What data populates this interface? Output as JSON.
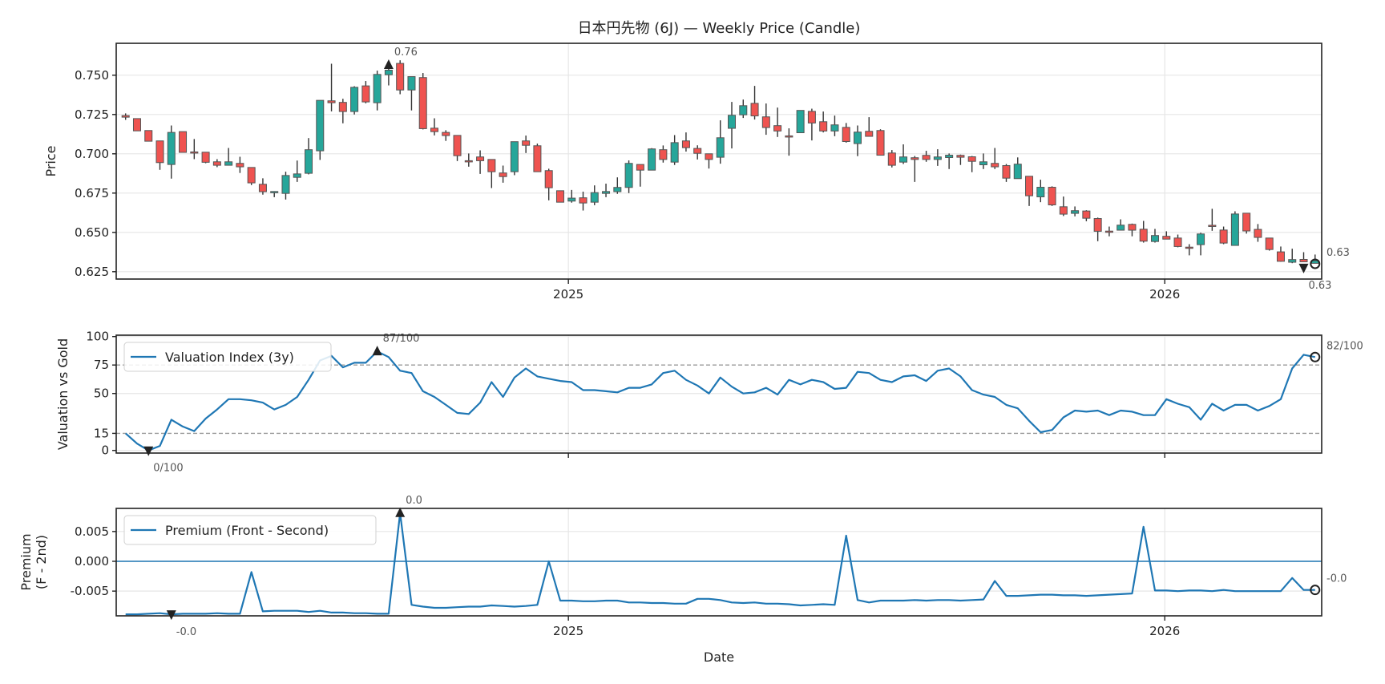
{
  "chart_data": [
    {
      "type": "candlestick",
      "title": "日本円先物 (6J) — Weekly Price (Candle)",
      "ylabel": "Price",
      "x_start": "2024-04-05",
      "x_step_days": 7,
      "ylim": [
        0.6203,
        0.7703
      ],
      "yticks": [
        0.75,
        0.725,
        0.7,
        0.675,
        0.65,
        0.625
      ],
      "ytick_labels": [
        "0.750",
        "0.725",
        "0.700",
        "0.675",
        "0.650",
        "0.625"
      ],
      "xticks": [
        "2025-01-01",
        "2026-01-01"
      ],
      "xtick_labels": [
        "2025",
        "2026"
      ],
      "colors": {
        "up": "#26a69a",
        "down": "#ef5350",
        "edge": "#555555",
        "wick": "#333333"
      },
      "ohlc": [
        [
          0.7243,
          0.7257,
          0.7216,
          0.7233
        ],
        [
          0.7224,
          0.7224,
          0.7146,
          0.7146
        ],
        [
          0.7148,
          0.7148,
          0.708,
          0.708
        ],
        [
          0.7082,
          0.7082,
          0.6898,
          0.6944
        ],
        [
          0.6932,
          0.718,
          0.6842,
          0.7136
        ],
        [
          0.7141,
          0.7141,
          0.7009,
          0.7009
        ],
        [
          0.7012,
          0.7094,
          0.6966,
          0.7008
        ],
        [
          0.701,
          0.701,
          0.694,
          0.6946
        ],
        [
          0.6949,
          0.6966,
          0.6915,
          0.6927
        ],
        [
          0.6927,
          0.7037,
          0.6927,
          0.6949
        ],
        [
          0.6939,
          0.6981,
          0.6878,
          0.6917
        ],
        [
          0.6913,
          0.6913,
          0.6801,
          0.6815
        ],
        [
          0.6806,
          0.6844,
          0.674,
          0.6759
        ],
        [
          0.6755,
          0.6762,
          0.6724,
          0.676
        ],
        [
          0.6748,
          0.6886,
          0.6709,
          0.6862
        ],
        [
          0.685,
          0.6957,
          0.6821,
          0.6872
        ],
        [
          0.6876,
          0.71,
          0.6869,
          0.7026
        ],
        [
          0.7019,
          0.734,
          0.6961,
          0.734
        ],
        [
          0.7337,
          0.7573,
          0.727,
          0.7325
        ],
        [
          0.7327,
          0.735,
          0.7194,
          0.7269
        ],
        [
          0.7269,
          0.743,
          0.725,
          0.7423
        ],
        [
          0.7432,
          0.7463,
          0.7321,
          0.733
        ],
        [
          0.7325,
          0.7529,
          0.7276,
          0.7505
        ],
        [
          0.7503,
          0.755,
          0.7435,
          0.7532
        ],
        [
          0.7575,
          0.7595,
          0.7379,
          0.7406
        ],
        [
          0.7406,
          0.7491,
          0.7276,
          0.7491
        ],
        [
          0.7485,
          0.7514,
          0.7155,
          0.716
        ],
        [
          0.7163,
          0.7226,
          0.7117,
          0.7141
        ],
        [
          0.7136,
          0.715,
          0.7082,
          0.7116
        ],
        [
          0.7117,
          0.7117,
          0.6954,
          0.6988
        ],
        [
          0.6956,
          0.7002,
          0.6918,
          0.6954
        ],
        [
          0.698,
          0.7022,
          0.6872,
          0.6956
        ],
        [
          0.6964,
          0.6964,
          0.6782,
          0.6886
        ],
        [
          0.6878,
          0.6925,
          0.6816,
          0.6855
        ],
        [
          0.6886,
          0.7077,
          0.6864,
          0.7077
        ],
        [
          0.7082,
          0.7116,
          0.7005,
          0.7054
        ],
        [
          0.7051,
          0.7065,
          0.6886,
          0.6886
        ],
        [
          0.6893,
          0.6905,
          0.6704,
          0.6784
        ],
        [
          0.6765,
          0.6765,
          0.6692,
          0.6692
        ],
        [
          0.6699,
          0.677,
          0.6689,
          0.6718
        ],
        [
          0.672,
          0.6759,
          0.6639,
          0.6687
        ],
        [
          0.6692,
          0.6799,
          0.6673,
          0.6753
        ],
        [
          0.6748,
          0.681,
          0.6724,
          0.676
        ],
        [
          0.6759,
          0.685,
          0.6745,
          0.6786
        ],
        [
          0.6786,
          0.6958,
          0.675,
          0.6939
        ],
        [
          0.6932,
          0.6932,
          0.6791,
          0.6896
        ],
        [
          0.6896,
          0.7036,
          0.6896,
          0.7031
        ],
        [
          0.7026,
          0.7053,
          0.6944,
          0.6964
        ],
        [
          0.6947,
          0.7119,
          0.6929,
          0.7071
        ],
        [
          0.7082,
          0.7136,
          0.7014,
          0.7039
        ],
        [
          0.7034,
          0.7054,
          0.6964,
          0.7003
        ],
        [
          0.7,
          0.7,
          0.6906,
          0.6964
        ],
        [
          0.6978,
          0.7213,
          0.6937,
          0.7102
        ],
        [
          0.7162,
          0.733,
          0.7034,
          0.7245
        ],
        [
          0.7248,
          0.7345,
          0.7228,
          0.7306
        ],
        [
          0.7321,
          0.7432,
          0.7218,
          0.7241
        ],
        [
          0.7235,
          0.732,
          0.7121,
          0.7167
        ],
        [
          0.7179,
          0.7294,
          0.7107,
          0.7145
        ],
        [
          0.7114,
          0.7162,
          0.6988,
          0.7112
        ],
        [
          0.7134,
          0.7276,
          0.7134,
          0.7276
        ],
        [
          0.727,
          0.7287,
          0.7085,
          0.7196
        ],
        [
          0.7204,
          0.7269,
          0.7136,
          0.7145
        ],
        [
          0.7145,
          0.7243,
          0.7112,
          0.7184
        ],
        [
          0.7168,
          0.7196,
          0.7071,
          0.7078
        ],
        [
          0.7065,
          0.718,
          0.6985,
          0.7138
        ],
        [
          0.7143,
          0.7233,
          0.7111,
          0.7111
        ],
        [
          0.7148,
          0.7156,
          0.6991,
          0.6991
        ],
        [
          0.7005,
          0.7024,
          0.6913,
          0.6927
        ],
        [
          0.6947,
          0.706,
          0.6935,
          0.698
        ],
        [
          0.6975,
          0.6986,
          0.6821,
          0.6964
        ],
        [
          0.699,
          0.7019,
          0.6949,
          0.6964
        ],
        [
          0.6964,
          0.7029,
          0.6923,
          0.698
        ],
        [
          0.6976,
          0.7002,
          0.6903,
          0.6991
        ],
        [
          0.699,
          0.6995,
          0.6929,
          0.6978
        ],
        [
          0.6981,
          0.6986,
          0.6883,
          0.6952
        ],
        [
          0.693,
          0.7002,
          0.6903,
          0.6949
        ],
        [
          0.6939,
          0.7037,
          0.6903,
          0.6917
        ],
        [
          0.6925,
          0.6935,
          0.6821,
          0.6845
        ],
        [
          0.6842,
          0.6977,
          0.6842,
          0.6934
        ],
        [
          0.6857,
          0.6857,
          0.6668,
          0.6733
        ],
        [
          0.6726,
          0.6835,
          0.6692,
          0.6787
        ],
        [
          0.6787,
          0.6793,
          0.6668,
          0.6675
        ],
        [
          0.6663,
          0.6728,
          0.6604,
          0.6616
        ],
        [
          0.6621,
          0.6665,
          0.6602,
          0.6638
        ],
        [
          0.6636,
          0.6641,
          0.6571,
          0.659
        ],
        [
          0.6588,
          0.6594,
          0.6444,
          0.6507
        ],
        [
          0.6508,
          0.6537,
          0.6475,
          0.6507
        ],
        [
          0.6514,
          0.6583,
          0.6514,
          0.6546
        ],
        [
          0.6551,
          0.6556,
          0.6475,
          0.6514
        ],
        [
          0.652,
          0.6573,
          0.6435,
          0.6444
        ],
        [
          0.6442,
          0.6522,
          0.6435,
          0.648
        ],
        [
          0.6475,
          0.6507,
          0.6457,
          0.6457
        ],
        [
          0.6464,
          0.6486,
          0.6405,
          0.641
        ],
        [
          0.6406,
          0.6425,
          0.6354,
          0.6405
        ],
        [
          0.6422,
          0.6498,
          0.6354,
          0.649
        ],
        [
          0.6545,
          0.665,
          0.651,
          0.6544
        ],
        [
          0.6515,
          0.6537,
          0.6425,
          0.6432
        ],
        [
          0.6417,
          0.6634,
          0.6417,
          0.6617
        ],
        [
          0.6622,
          0.6622,
          0.6492,
          0.6509
        ],
        [
          0.6519,
          0.6553,
          0.644,
          0.6468
        ],
        [
          0.6464,
          0.6464,
          0.6384,
          0.6391
        ],
        [
          0.6376,
          0.641,
          0.6313,
          0.6316
        ],
        [
          0.631,
          0.6396,
          0.6304,
          0.6327
        ],
        [
          0.6328,
          0.6374,
          0.6313,
          0.6313
        ],
        [
          0.6303,
          0.6359,
          0.6303,
          0.632
        ]
      ],
      "annotations": [
        {
          "index": 23,
          "value": 0.7565,
          "label": "0.76",
          "marker": "triangle-up",
          "pos": "above"
        },
        {
          "index": 103,
          "value": 0.6275,
          "label": "0.63",
          "marker": "triangle-down",
          "pos": "below"
        },
        {
          "index": 104,
          "value": 0.63,
          "label": "0.63",
          "marker": "circle",
          "pos": "right"
        }
      ]
    },
    {
      "type": "line",
      "ylabel": "Valuation vs Gold",
      "legend": "Valuation Index (3y)",
      "legend_position": "upper-left",
      "color": "#1f77b4",
      "ylim": [
        -2.3,
        101.2
      ],
      "yticks": [
        0,
        15,
        50,
        75,
        100
      ],
      "ytick_labels": [
        "0",
        "15",
        "50",
        "75",
        "100"
      ],
      "grid_y": [
        0,
        50,
        100
      ],
      "threshold_lines": [
        75,
        15
      ],
      "values": [
        15,
        6,
        0,
        4,
        27,
        21,
        17,
        28,
        36,
        45,
        45,
        44,
        42,
        36,
        40,
        47,
        62,
        79,
        83,
        73,
        77,
        77,
        87,
        82,
        70,
        68,
        52,
        47,
        40,
        33,
        32,
        42,
        60,
        47,
        64,
        72,
        65,
        63,
        61,
        60,
        53,
        53,
        52,
        51,
        55,
        55,
        58,
        68,
        70,
        62,
        57,
        50,
        64,
        56,
        50,
        51,
        55,
        49,
        62,
        58,
        62,
        60,
        54,
        55,
        69,
        68,
        62,
        60,
        65,
        66,
        61,
        70,
        72,
        65,
        53,
        49,
        47,
        40,
        37,
        26,
        16,
        18,
        29,
        35,
        34,
        35,
        31,
        35,
        34,
        31,
        31,
        45,
        41,
        38,
        27,
        41,
        35,
        40,
        40,
        35,
        39,
        45,
        72,
        84,
        82
      ],
      "annotations": [
        {
          "index": 22,
          "value": 87,
          "label": "87/100",
          "marker": "triangle-up",
          "pos": "above"
        },
        {
          "index": 2,
          "value": 0,
          "label": "0/100",
          "marker": "triangle-down",
          "pos": "below"
        },
        {
          "index": 104,
          "value": 82,
          "label": "82/100",
          "marker": "circle",
          "pos": "right"
        }
      ]
    },
    {
      "type": "line",
      "ylabel": "Premium\n(F - 2nd)",
      "ylabel_lines": [
        "Premium",
        "(F - 2nd)"
      ],
      "xlabel": "Date",
      "legend": "Premium (Front - Second)",
      "legend_position": "upper-left",
      "color": "#1f77b4",
      "ylim": [
        -0.00915,
        0.00888
      ],
      "yticks": [
        0.005,
        0.0,
        -0.005
      ],
      "ytick_labels": [
        "0.005",
        "0.000",
        "-0.005"
      ],
      "zero_line": 0,
      "values": [
        -0.0089,
        -0.0089,
        -0.0088,
        -0.0087,
        -0.0089,
        -0.0088,
        -0.0088,
        -0.0088,
        -0.0087,
        -0.0088,
        -0.0088,
        -0.0018,
        -0.0084,
        -0.0083,
        -0.0083,
        -0.0083,
        -0.0085,
        -0.0083,
        -0.0086,
        -0.0086,
        -0.0087,
        -0.0087,
        -0.0088,
        -0.0088,
        0.0081,
        -0.0073,
        -0.0076,
        -0.0078,
        -0.0078,
        -0.0077,
        -0.0076,
        -0.0076,
        -0.0074,
        -0.0075,
        -0.0076,
        -0.0075,
        -0.0073,
        0.0,
        -0.0066,
        -0.0066,
        -0.0067,
        -0.0067,
        -0.0066,
        -0.0066,
        -0.0069,
        -0.0069,
        -0.007,
        -0.007,
        -0.0071,
        -0.0071,
        -0.0063,
        -0.0063,
        -0.0065,
        -0.0069,
        -0.007,
        -0.0069,
        -0.0071,
        -0.0071,
        -0.0072,
        -0.0074,
        -0.0073,
        -0.0072,
        -0.0073,
        0.0043,
        -0.0065,
        -0.0069,
        -0.0066,
        -0.0066,
        -0.0066,
        -0.0065,
        -0.0066,
        -0.0065,
        -0.0065,
        -0.0066,
        -0.0065,
        -0.0064,
        -0.0033,
        -0.0058,
        -0.0058,
        -0.0057,
        -0.0056,
        -0.0056,
        -0.0057,
        -0.0057,
        -0.0058,
        -0.0057,
        -0.0056,
        -0.0055,
        -0.0054,
        0.0058,
        -0.0049,
        -0.0049,
        -0.005,
        -0.0049,
        -0.0049,
        -0.005,
        -0.0048,
        -0.005,
        -0.005,
        -0.005,
        -0.005,
        -0.005,
        -0.0028,
        -0.0048,
        -0.0048
      ],
      "annotations": [
        {
          "index": 24,
          "value": 0.0081,
          "label": "0.0",
          "marker": "triangle-up",
          "pos": "above"
        },
        {
          "index": 4,
          "value": -0.0089,
          "label": "-0.0",
          "marker": "triangle-down",
          "pos": "below"
        },
        {
          "index": 104,
          "value": -0.0048,
          "label": "-0.0",
          "marker": "circle",
          "pos": "right"
        }
      ]
    }
  ]
}
